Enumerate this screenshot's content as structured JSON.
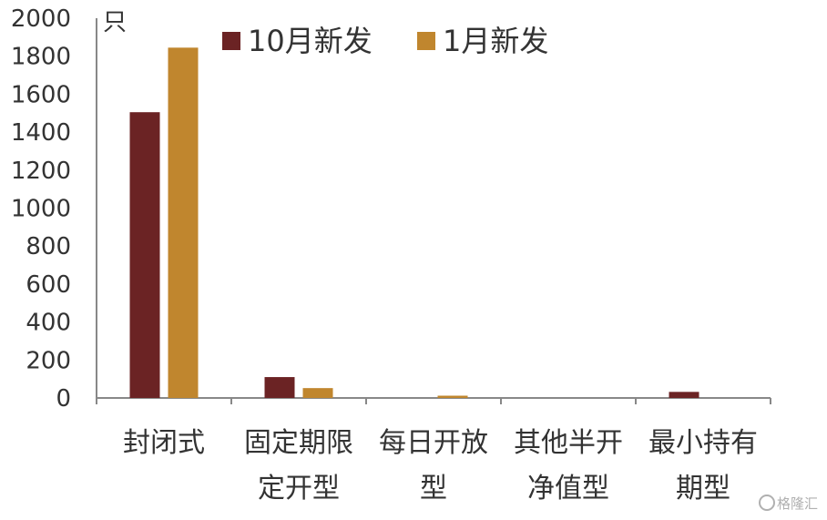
{
  "chart_data": {
    "type": "bar",
    "y_unit": "只",
    "ylim": [
      0,
      2000
    ],
    "yticks": [
      0,
      200,
      400,
      600,
      800,
      1000,
      1200,
      1400,
      1600,
      1800,
      2000
    ],
    "categories": [
      [
        "封闭式"
      ],
      [
        "固定期限",
        "定开型"
      ],
      [
        "每日开放",
        "型"
      ],
      [
        "其他半开",
        "净值型"
      ],
      [
        "最小持有",
        "期型"
      ]
    ],
    "series": [
      {
        "name": "10月新发",
        "color": "#6b2324",
        "values": [
          1505,
          110,
          0,
          0,
          32
        ]
      },
      {
        "name": "1月新发",
        "color": "#c0862e",
        "values": [
          1845,
          52,
          12,
          0,
          0
        ]
      }
    ],
    "legend_position": "top",
    "grid": false
  },
  "watermark": "格隆汇"
}
